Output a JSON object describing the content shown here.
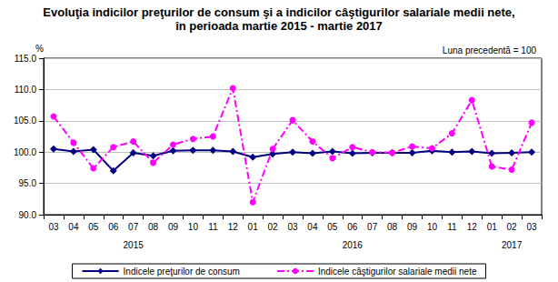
{
  "chart_data": {
    "type": "line",
    "title": "Evoluţia indicilor preţurilor de consum şi a indicilor câştigurilor salariale medii nete,",
    "subtitle": "în perioada martie 2015 - martie 2017",
    "y_label": "%",
    "annotation": "Luna precedentă = 100",
    "categories": [
      "03",
      "04",
      "05",
      "06",
      "07",
      "08",
      "09",
      "10",
      "11",
      "12",
      "01",
      "02",
      "03",
      "04",
      "05",
      "06",
      "07",
      "08",
      "09",
      "10",
      "11",
      "12",
      "01",
      "02",
      "03"
    ],
    "years": [
      "2015",
      "2015",
      "2015",
      "2015",
      "2015",
      "2015",
      "2015",
      "2015",
      "2015",
      "2015",
      "2016",
      "2016",
      "2016",
      "2016",
      "2016",
      "2016",
      "2016",
      "2016",
      "2016",
      "2016",
      "2016",
      "2016",
      "2017",
      "2017",
      "2017"
    ],
    "series": [
      {
        "name": "Indicele preţurilor de consum",
        "color": "#000080",
        "marker": "diamond",
        "line_style": "solid",
        "values": [
          100.5,
          100.1,
          100.4,
          97.0,
          99.9,
          99.4,
          100.2,
          100.3,
          100.3,
          100.1,
          99.2,
          99.7,
          100.0,
          99.8,
          100.1,
          99.8,
          99.9,
          99.9,
          99.9,
          100.2,
          100.0,
          100.1,
          99.8,
          99.9,
          100.0
        ]
      },
      {
        "name": "Indicele câştigurilor salariale medii nete",
        "color": "#ff00ff",
        "marker": "circle",
        "line_style": "dashdot",
        "values": [
          105.7,
          101.5,
          97.4,
          100.8,
          101.7,
          98.3,
          101.2,
          102.1,
          102.5,
          110.2,
          92.0,
          100.5,
          105.1,
          101.7,
          99.0,
          100.8,
          100.0,
          99.9,
          100.9,
          100.6,
          103.0,
          108.3,
          97.7,
          97.2,
          104.7
        ]
      }
    ],
    "ylim": [
      90,
      115
    ],
    "yticks": [
      {
        "value": 90,
        "label": "90.0"
      },
      {
        "value": 95,
        "label": "95.0"
      },
      {
        "value": 100,
        "label": "100.0"
      },
      {
        "value": 105,
        "label": "105.0"
      },
      {
        "value": 110,
        "label": "110.0"
      },
      {
        "value": 115,
        "label": "115.0"
      }
    ],
    "grid": true,
    "legend": "bottom"
  }
}
